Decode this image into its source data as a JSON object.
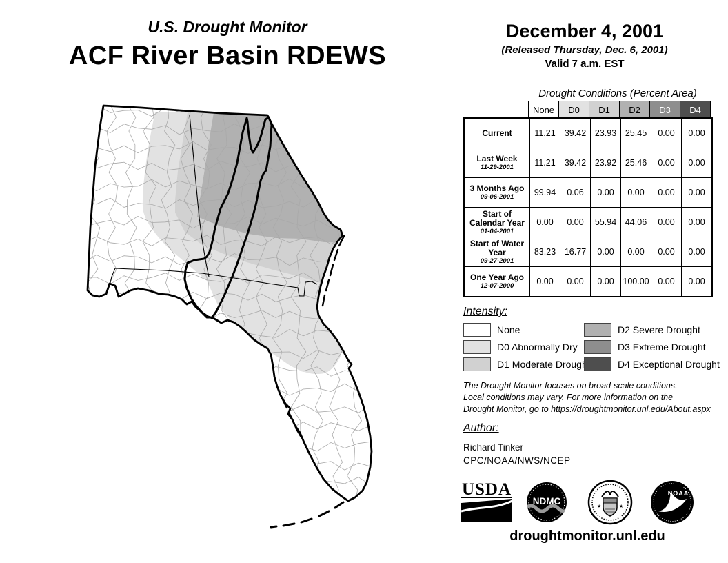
{
  "header": {
    "program": "U.S. Drought Monitor",
    "title": "ACF River Basin RDEWS",
    "date": "December 4, 2001",
    "released": "(Released Thursday, Dec. 6, 2001)",
    "valid": "Valid 7 a.m. EST"
  },
  "table": {
    "caption": "Drought Conditions (Percent Area)",
    "columns": [
      "None",
      "D0",
      "D1",
      "D2",
      "D3",
      "D4"
    ],
    "header_styles": [
      {
        "bg": "#ffffff",
        "fg": "#000000"
      },
      {
        "bg": "#e2e2e2",
        "fg": "#000000"
      },
      {
        "bg": "#d1d1d1",
        "fg": "#000000"
      },
      {
        "bg": "#b1b1b1",
        "fg": "#000000"
      },
      {
        "bg": "#8e8e8e",
        "fg": "#ffffff"
      },
      {
        "bg": "#4e4e4e",
        "fg": "#ffffff"
      }
    ],
    "rows": [
      {
        "label": "Current",
        "sublabel": "",
        "values": [
          "11.21",
          "39.42",
          "23.93",
          "25.45",
          "0.00",
          "0.00"
        ]
      },
      {
        "label": "Last Week",
        "sublabel": "11-29-2001",
        "values": [
          "11.21",
          "39.42",
          "23.92",
          "25.46",
          "0.00",
          "0.00"
        ]
      },
      {
        "label": "3 Months Ago",
        "sublabel": "09-06-2001",
        "values": [
          "99.94",
          "0.06",
          "0.00",
          "0.00",
          "0.00",
          "0.00"
        ]
      },
      {
        "label": "Start of Calendar Year",
        "sublabel": "01-04-2001",
        "values": [
          "0.00",
          "0.00",
          "55.94",
          "44.06",
          "0.00",
          "0.00"
        ]
      },
      {
        "label": "Start of Water Year",
        "sublabel": "09-27-2001",
        "values": [
          "83.23",
          "16.77",
          "0.00",
          "0.00",
          "0.00",
          "0.00"
        ]
      },
      {
        "label": "One Year Ago",
        "sublabel": "12-07-2000",
        "values": [
          "0.00",
          "0.00",
          "0.00",
          "100.00",
          "0.00",
          "0.00"
        ]
      }
    ]
  },
  "legend": {
    "heading": "Intensity:",
    "items": [
      {
        "label": "None",
        "color": "#ffffff"
      },
      {
        "label": "D0 Abnormally Dry",
        "color": "#e2e2e2"
      },
      {
        "label": "D1 Moderate Drought",
        "color": "#d1d1d1"
      },
      {
        "label": "D2 Severe Drought",
        "color": "#b1b1b1"
      },
      {
        "label": "D3 Extreme Drought",
        "color": "#8e8e8e"
      },
      {
        "label": "D4 Exceptional Drought",
        "color": "#4e4e4e"
      }
    ]
  },
  "notes": {
    "line1": "The Drought Monitor focuses on broad-scale conditions.",
    "line2": "Local conditions may vary. For more information on the",
    "line3": "Drought Monitor, go to https://droughtmonitor.unl.edu/About.aspx"
  },
  "author": {
    "heading": "Author:",
    "name": "Richard Tinker",
    "org": "CPC/NOAA/NWS/NCEP"
  },
  "logos": [
    {
      "label": "USDA"
    },
    {
      "label": "NDMC"
    },
    {
      "label": ""
    },
    {
      "label": "NOAA"
    }
  ],
  "footer": {
    "url": "droughtmonitor.unl.edu"
  },
  "colors": {
    "none": "#ffffff",
    "d0": "#e2e2e2",
    "d1": "#d1d1d1",
    "d2": "#b1b1b1",
    "d3": "#8e8e8e",
    "d4": "#4e4e4e",
    "county_line": "#a9a9a9",
    "map_line": "#000000"
  }
}
